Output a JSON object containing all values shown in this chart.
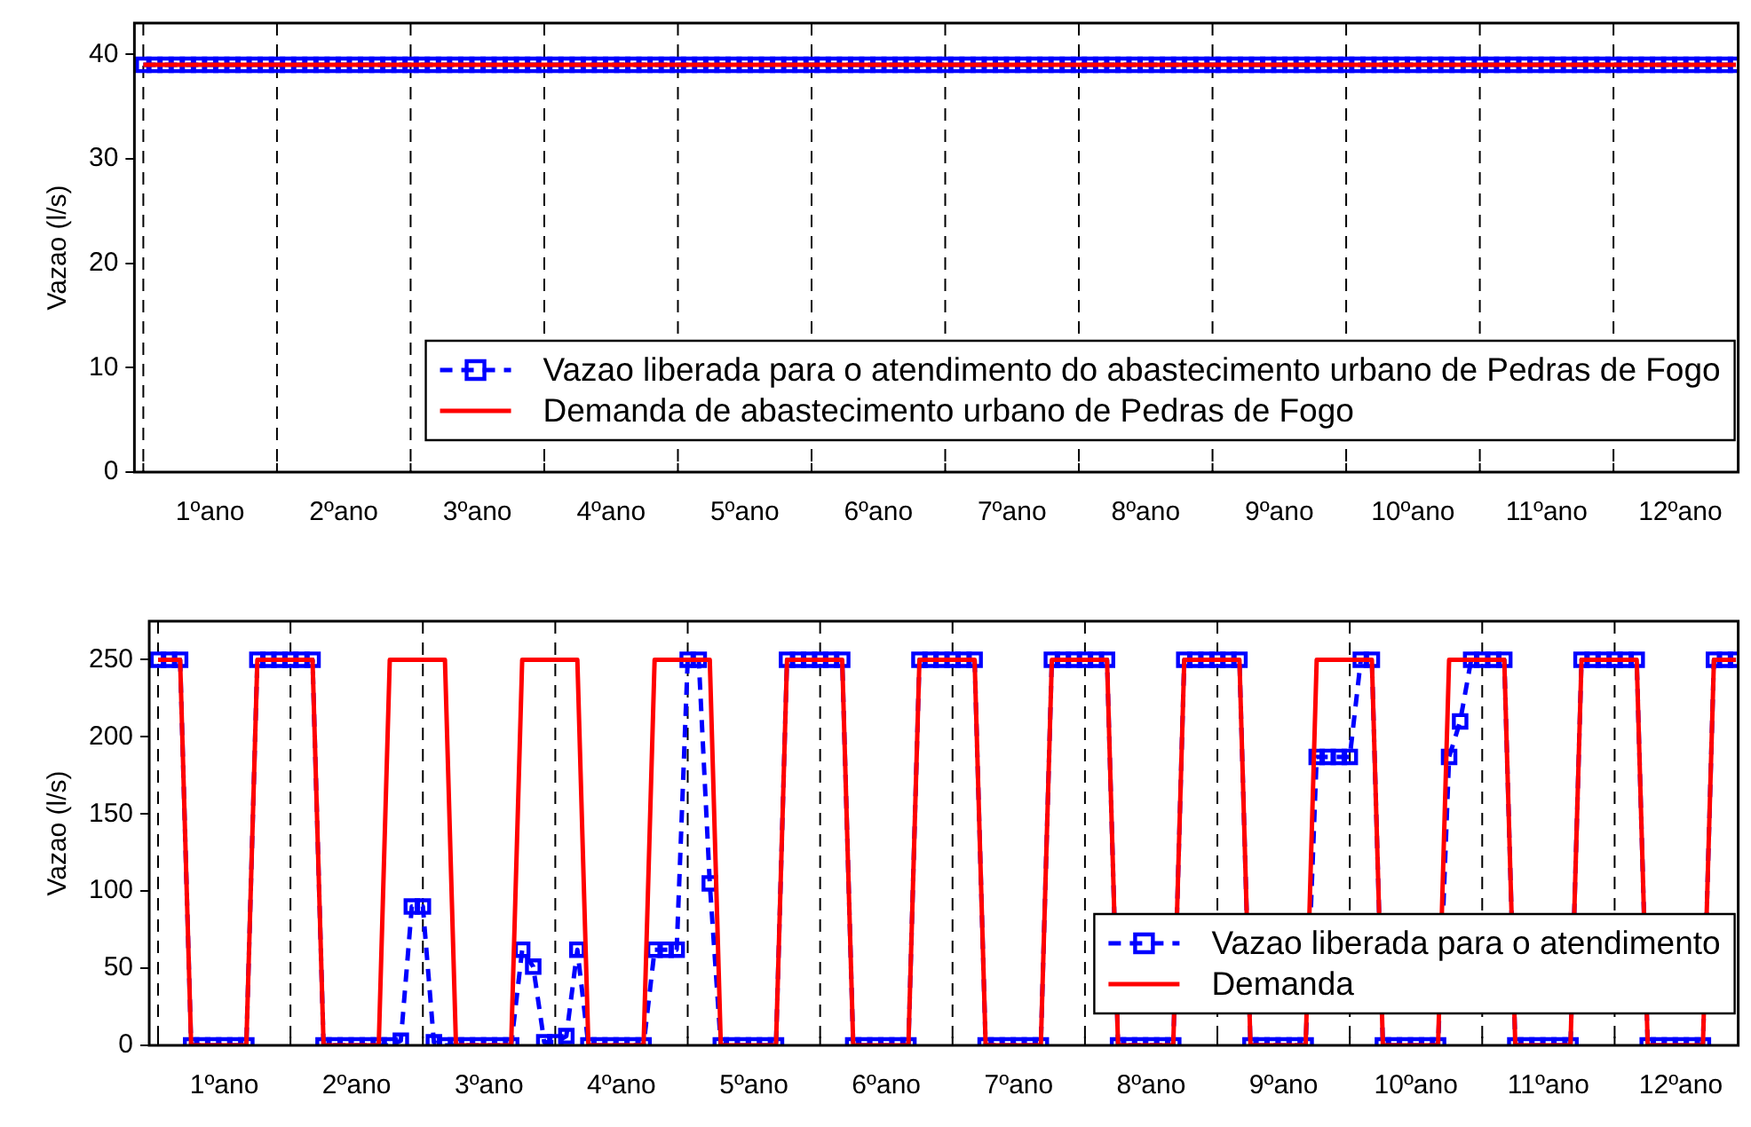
{
  "chart_data": [
    {
      "type": "line",
      "ylabel": "Vazao (l/s)",
      "legend": "bottom right",
      "grid": "x",
      "categories": [
        null,
        null,
        null,
        null,
        null,
        null,
        "1ºano",
        null,
        null,
        null,
        null,
        null,
        null,
        null,
        null,
        null,
        null,
        null,
        "2ºano",
        null,
        null,
        null,
        null,
        null,
        null,
        null,
        null,
        null,
        null,
        null,
        "3ºano",
        null,
        null,
        null,
        null,
        null,
        null,
        null,
        null,
        null,
        null,
        null,
        "4ºano",
        null,
        null,
        null,
        null,
        null,
        null,
        null,
        null,
        null,
        null,
        null,
        "5ºano",
        null,
        null,
        null,
        null,
        null,
        null,
        null,
        null,
        null,
        null,
        null,
        "6ºano",
        null,
        null,
        null,
        null,
        null,
        null,
        null,
        null,
        null,
        null,
        null,
        "7ºano",
        null,
        null,
        null,
        null,
        null,
        null,
        null,
        null,
        null,
        null,
        null,
        "8ºano",
        null,
        null,
        null,
        null,
        null,
        null,
        null,
        null,
        null,
        null,
        null,
        "9ºano",
        null,
        null,
        null,
        null,
        null,
        null,
        null,
        null,
        null,
        null,
        null,
        "10ºano",
        null,
        null,
        null,
        null,
        null,
        null,
        null,
        null,
        null,
        null,
        null,
        "11ºano",
        null,
        null,
        null,
        null,
        null,
        null,
        null,
        null,
        null,
        null,
        null,
        "12ºano",
        null,
        null,
        null,
        null,
        null
      ],
      "ylim": [
        0,
        43
      ],
      "yticks": [
        0,
        10,
        20,
        30,
        40
      ],
      "series": [
        {
          "name": "Vazao liberada para o atendimento do abastecimento urbano de Pedras de Fogo",
          "color": "#0000ff",
          "marker": "square",
          "line_style": "dashed",
          "values": [
            39,
            39,
            39,
            39,
            39,
            39,
            39,
            39,
            39,
            39,
            39,
            39,
            39,
            39,
            39,
            39,
            39,
            39,
            39,
            39,
            39,
            39,
            39,
            39,
            39,
            39,
            39,
            39,
            39,
            39,
            39,
            39,
            39,
            39,
            39,
            39,
            39,
            39,
            39,
            39,
            39,
            39,
            39,
            39,
            39,
            39,
            39,
            39,
            39,
            39,
            39,
            39,
            39,
            39,
            39,
            39,
            39,
            39,
            39,
            39,
            39,
            39,
            39,
            39,
            39,
            39,
            39,
            39,
            39,
            39,
            39,
            39,
            39,
            39,
            39,
            39,
            39,
            39,
            39,
            39,
            39,
            39,
            39,
            39,
            39,
            39,
            39,
            39,
            39,
            39,
            39,
            39,
            39,
            39,
            39,
            39,
            39,
            39,
            39,
            39,
            39,
            39,
            39,
            39,
            39,
            39,
            39,
            39,
            39,
            39,
            39,
            39,
            39,
            39,
            39,
            39,
            39,
            39,
            39,
            39,
            39,
            39,
            39,
            39,
            39,
            39,
            39,
            39,
            39,
            39,
            39,
            39,
            39,
            39,
            39,
            39,
            39,
            39,
            39,
            39,
            39,
            39,
            39,
            39
          ]
        },
        {
          "name": "Demanda de abastecimento urbano de Pedras de Fogo",
          "color": "#ff0000",
          "marker": "none",
          "line_style": "solid",
          "values": [
            39,
            39,
            39,
            39,
            39,
            39,
            39,
            39,
            39,
            39,
            39,
            39,
            39,
            39,
            39,
            39,
            39,
            39,
            39,
            39,
            39,
            39,
            39,
            39,
            39,
            39,
            39,
            39,
            39,
            39,
            39,
            39,
            39,
            39,
            39,
            39,
            39,
            39,
            39,
            39,
            39,
            39,
            39,
            39,
            39,
            39,
            39,
            39,
            39,
            39,
            39,
            39,
            39,
            39,
            39,
            39,
            39,
            39,
            39,
            39,
            39,
            39,
            39,
            39,
            39,
            39,
            39,
            39,
            39,
            39,
            39,
            39,
            39,
            39,
            39,
            39,
            39,
            39,
            39,
            39,
            39,
            39,
            39,
            39,
            39,
            39,
            39,
            39,
            39,
            39,
            39,
            39,
            39,
            39,
            39,
            39,
            39,
            39,
            39,
            39,
            39,
            39,
            39,
            39,
            39,
            39,
            39,
            39,
            39,
            39,
            39,
            39,
            39,
            39,
            39,
            39,
            39,
            39,
            39,
            39,
            39,
            39,
            39,
            39,
            39,
            39,
            39,
            39,
            39,
            39,
            39,
            39,
            39,
            39,
            39,
            39,
            39,
            39,
            39,
            39,
            39,
            39,
            39,
            39
          ]
        }
      ]
    },
    {
      "type": "line",
      "ylabel": "Vazao (l/s)",
      "legend": "bottom right",
      "grid": "x",
      "categories": [
        null,
        null,
        null,
        null,
        null,
        null,
        "1ºano",
        null,
        null,
        null,
        null,
        null,
        null,
        null,
        null,
        null,
        null,
        null,
        "2ºano",
        null,
        null,
        null,
        null,
        null,
        null,
        null,
        null,
        null,
        null,
        null,
        "3ºano",
        null,
        null,
        null,
        null,
        null,
        null,
        null,
        null,
        null,
        null,
        null,
        "4ºano",
        null,
        null,
        null,
        null,
        null,
        null,
        null,
        null,
        null,
        null,
        null,
        "5ºano",
        null,
        null,
        null,
        null,
        null,
        null,
        null,
        null,
        null,
        null,
        null,
        "6ºano",
        null,
        null,
        null,
        null,
        null,
        null,
        null,
        null,
        null,
        null,
        null,
        "7ºano",
        null,
        null,
        null,
        null,
        null,
        null,
        null,
        null,
        null,
        null,
        null,
        "8ºano",
        null,
        null,
        null,
        null,
        null,
        null,
        null,
        null,
        null,
        null,
        null,
        "9ºano",
        null,
        null,
        null,
        null,
        null,
        null,
        null,
        null,
        null,
        null,
        null,
        "10ºano",
        null,
        null,
        null,
        null,
        null,
        null,
        null,
        null,
        null,
        null,
        null,
        "11ºano",
        null,
        null,
        null,
        null,
        null,
        null,
        null,
        null,
        null,
        null,
        null,
        "12ºano",
        null,
        null,
        null,
        null,
        null
      ],
      "ylim": [
        0,
        275
      ],
      "yticks": [
        0,
        50,
        100,
        150,
        200,
        250
      ],
      "series": [
        {
          "name": "Vazao liberada para o atendimento",
          "color": "#0000ff",
          "marker": "square",
          "line_style": "dashed",
          "values": [
            250,
            250,
            250,
            0,
            0,
            0,
            0,
            0,
            0,
            250,
            250,
            250,
            250,
            250,
            250,
            0,
            0,
            0,
            0,
            0,
            0,
            0,
            3,
            90,
            90,
            2,
            0,
            0,
            0,
            0,
            0,
            0,
            0,
            62,
            51,
            2,
            2,
            6,
            62,
            0,
            0,
            0,
            0,
            0,
            0,
            62,
            62,
            62,
            250,
            250,
            105,
            0,
            0,
            0,
            0,
            0,
            0,
            250,
            250,
            250,
            250,
            250,
            250,
            0,
            0,
            0,
            0,
            0,
            0,
            250,
            250,
            250,
            250,
            250,
            250,
            0,
            0,
            0,
            0,
            0,
            0,
            250,
            250,
            250,
            250,
            250,
            250,
            0,
            0,
            0,
            0,
            0,
            0,
            250,
            250,
            250,
            250,
            250,
            250,
            0,
            0,
            0,
            0,
            0,
            0,
            187,
            187,
            187,
            187,
            250,
            250,
            0,
            0,
            0,
            0,
            0,
            0,
            187,
            210,
            250,
            250,
            250,
            250,
            0,
            0,
            0,
            0,
            0,
            0,
            250,
            250,
            250,
            250,
            250,
            250,
            0,
            0,
            0,
            0,
            0,
            0,
            250,
            250,
            250
          ]
        },
        {
          "name": "Demanda",
          "color": "#ff0000",
          "marker": "none",
          "line_style": "solid",
          "values": [
            250,
            250,
            250,
            0,
            0,
            0,
            0,
            0,
            0,
            250,
            250,
            250,
            250,
            250,
            250,
            0,
            0,
            0,
            0,
            0,
            0,
            250,
            250,
            250,
            250,
            250,
            250,
            0,
            0,
            0,
            0,
            0,
            0,
            250,
            250,
            250,
            250,
            250,
            250,
            0,
            0,
            0,
            0,
            0,
            0,
            250,
            250,
            250,
            250,
            250,
            250,
            0,
            0,
            0,
            0,
            0,
            0,
            250,
            250,
            250,
            250,
            250,
            250,
            0,
            0,
            0,
            0,
            0,
            0,
            250,
            250,
            250,
            250,
            250,
            250,
            0,
            0,
            0,
            0,
            0,
            0,
            250,
            250,
            250,
            250,
            250,
            250,
            0,
            0,
            0,
            0,
            0,
            0,
            250,
            250,
            250,
            250,
            250,
            250,
            0,
            0,
            0,
            0,
            0,
            0,
            250,
            250,
            250,
            250,
            250,
            250,
            0,
            0,
            0,
            0,
            0,
            0,
            250,
            250,
            250,
            250,
            250,
            250,
            0,
            0,
            0,
            0,
            0,
            0,
            250,
            250,
            250,
            250,
            250,
            250,
            0,
            0,
            0,
            0,
            0,
            0,
            250,
            250,
            250
          ]
        }
      ]
    }
  ]
}
